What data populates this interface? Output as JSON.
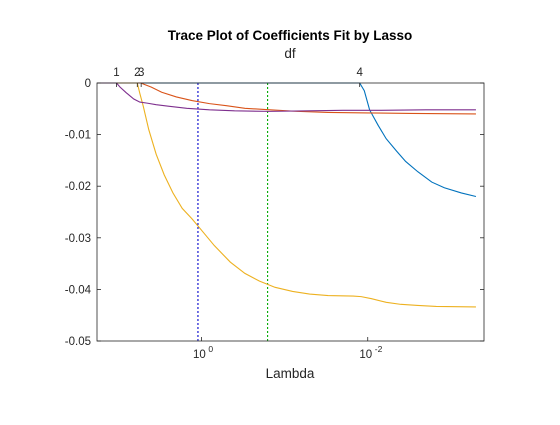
{
  "chart_data": {
    "type": "line",
    "title": "Trace Plot of Coefficients Fit by Lasso",
    "top_axis_label": "df",
    "xlabel": "Lambda",
    "ylabel": "",
    "x_scale": "log",
    "x_direction": "reversed",
    "xlim": [
      18,
      0.0004
    ],
    "ylim": [
      -0.05,
      0
    ],
    "grid": false,
    "y_ticks": [
      {
        "value": 0,
        "label": "0"
      },
      {
        "value": -0.01,
        "label": "-0.01"
      },
      {
        "value": -0.02,
        "label": "-0.02"
      },
      {
        "value": -0.03,
        "label": "-0.03"
      },
      {
        "value": -0.04,
        "label": "-0.04"
      },
      {
        "value": -0.05,
        "label": "-0.05"
      }
    ],
    "x_ticks": [
      {
        "value": 1,
        "base": "10",
        "exponent": "0"
      },
      {
        "value": 0.01,
        "base": "10",
        "exponent": "-2"
      }
    ],
    "df_ticks": [
      {
        "lambda": 10.5,
        "label": "1"
      },
      {
        "lambda": 5.9,
        "label": "2"
      },
      {
        "lambda": 5.3,
        "label": "3"
      },
      {
        "lambda": 0.0125,
        "label": "4"
      }
    ],
    "vertical_lines": [
      {
        "lambda": 1.1,
        "color": "#0000cc"
      },
      {
        "lambda": 0.16,
        "color": "#00aa00"
      }
    ],
    "series": [
      {
        "color": "#0072BD",
        "points": [
          [
            18,
            0
          ],
          [
            0.0125,
            0
          ],
          [
            0.011,
            -0.0015
          ],
          [
            0.0095,
            -0.0052
          ],
          [
            0.0075,
            -0.0082
          ],
          [
            0.006,
            -0.0108
          ],
          [
            0.0045,
            -0.0132
          ],
          [
            0.0035,
            -0.0152
          ],
          [
            0.0025,
            -0.0172
          ],
          [
            0.0017,
            -0.0192
          ],
          [
            0.0012,
            -0.0203
          ],
          [
            0.00075,
            -0.0213
          ],
          [
            0.0005,
            -0.022
          ]
        ]
      },
      {
        "color": "#D95319",
        "points": [
          [
            18,
            0
          ],
          [
            5.3,
            0
          ],
          [
            5.0,
            -0.0002
          ],
          [
            4.0,
            -0.0008
          ],
          [
            3.0,
            -0.0018
          ],
          [
            2.0,
            -0.0027
          ],
          [
            1.3,
            -0.0034
          ],
          [
            0.8,
            -0.004
          ],
          [
            0.5,
            -0.0044
          ],
          [
            0.3,
            -0.0049
          ],
          [
            0.15,
            -0.0052
          ],
          [
            0.07,
            -0.0055
          ],
          [
            0.03,
            -0.0057
          ],
          [
            0.01,
            -0.0058
          ],
          [
            0.003,
            -0.0059
          ],
          [
            0.0005,
            -0.006
          ]
        ]
      },
      {
        "color": "#EDB120",
        "points": [
          [
            18,
            0
          ],
          [
            5.9,
            0
          ],
          [
            5.5,
            -0.002
          ],
          [
            5.0,
            -0.0045
          ],
          [
            4.3,
            -0.009
          ],
          [
            3.5,
            -0.0138
          ],
          [
            2.8,
            -0.0178
          ],
          [
            2.2,
            -0.0213
          ],
          [
            1.7,
            -0.0243
          ],
          [
            1.3,
            -0.0263
          ],
          [
            1.0,
            -0.0285
          ],
          [
            0.7,
            -0.0315
          ],
          [
            0.45,
            -0.0347
          ],
          [
            0.3,
            -0.0369
          ],
          [
            0.2,
            -0.0384
          ],
          [
            0.13,
            -0.0396
          ],
          [
            0.08,
            -0.0404
          ],
          [
            0.05,
            -0.0409
          ],
          [
            0.03,
            -0.0412
          ],
          [
            0.015,
            -0.0413
          ],
          [
            0.012,
            -0.0414
          ],
          [
            0.009,
            -0.0418
          ],
          [
            0.006,
            -0.0425
          ],
          [
            0.004,
            -0.0429
          ],
          [
            0.0025,
            -0.0431
          ],
          [
            0.0015,
            -0.0433
          ],
          [
            0.0005,
            -0.0434
          ]
        ]
      },
      {
        "color": "#7E2F8E",
        "points": [
          [
            18,
            0
          ],
          [
            10.5,
            0
          ],
          [
            9.5,
            -0.0008
          ],
          [
            8.0,
            -0.0019
          ],
          [
            6.5,
            -0.0031
          ],
          [
            5.5,
            -0.0037
          ],
          [
            4.5,
            -0.0039
          ],
          [
            3.5,
            -0.0042
          ],
          [
            2.5,
            -0.0045
          ],
          [
            1.5,
            -0.0049
          ],
          [
            0.8,
            -0.0052
          ],
          [
            0.4,
            -0.0054
          ],
          [
            0.15,
            -0.0055
          ],
          [
            0.05,
            -0.0054
          ],
          [
            0.02,
            -0.0053
          ],
          [
            0.008,
            -0.0053
          ],
          [
            0.002,
            -0.0052
          ],
          [
            0.0005,
            -0.0052
          ]
        ]
      }
    ]
  }
}
